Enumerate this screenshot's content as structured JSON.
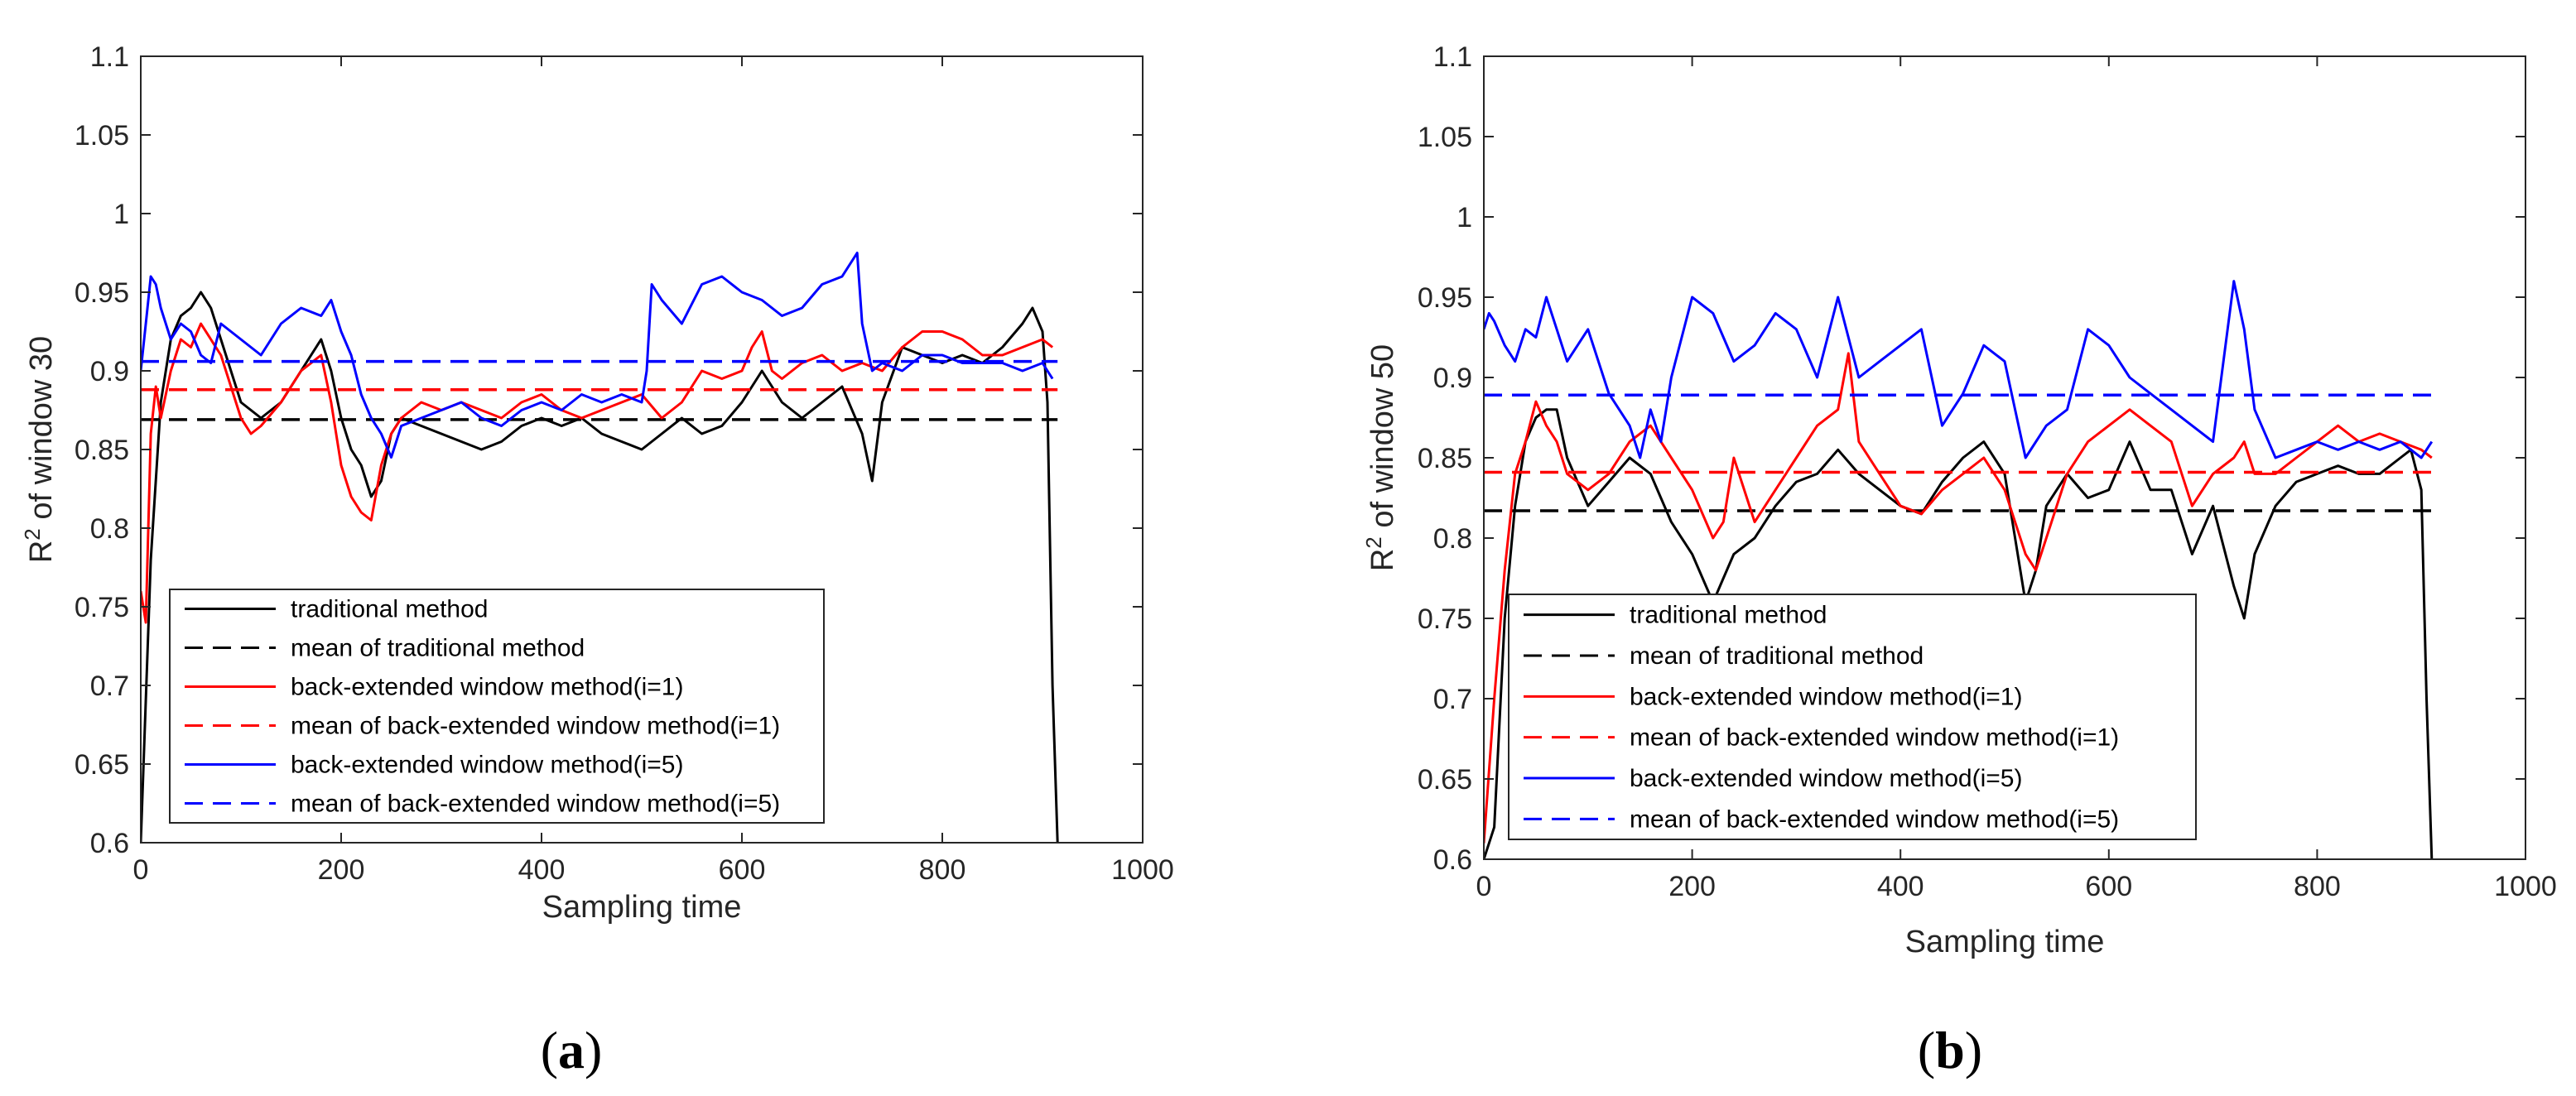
{
  "chart_data": [
    {
      "id": "a",
      "type": "line",
      "panel_label_open": "(",
      "panel_label_letter": "a",
      "panel_label_close": ")",
      "xlabel": "Sampling time",
      "ylabel_prefix": "R",
      "ylabel_sup": "2",
      "ylabel_suffix": " of window 30",
      "xlim": [
        0,
        1000
      ],
      "ylim": [
        0.6,
        1.1
      ],
      "xticks": [
        "0",
        "200",
        "400",
        "600",
        "800",
        "1000"
      ],
      "yticks": [
        "0.6",
        "0.65",
        "0.7",
        "0.75",
        "0.8",
        "0.85",
        "0.9",
        "0.95",
        "1",
        "1.05",
        "1.1"
      ],
      "legend_position": "bottom-left",
      "series": [
        {
          "name": "traditional method",
          "color": "#000000",
          "dash": "solid",
          "x": [
            0,
            10,
            20,
            30,
            40,
            50,
            60,
            70,
            80,
            90,
            100,
            120,
            140,
            160,
            180,
            190,
            200,
            210,
            220,
            230,
            240,
            250,
            260,
            280,
            300,
            320,
            340,
            360,
            380,
            400,
            420,
            440,
            460,
            480,
            500,
            520,
            540,
            560,
            580,
            600,
            620,
            640,
            660,
            680,
            700,
            720,
            730,
            740,
            760,
            780,
            800,
            820,
            840,
            860,
            880,
            890,
            900,
            905,
            910,
            915
          ],
          "y": [
            0.6,
            0.78,
            0.88,
            0.92,
            0.935,
            0.94,
            0.95,
            0.94,
            0.92,
            0.9,
            0.88,
            0.87,
            0.88,
            0.9,
            0.92,
            0.9,
            0.87,
            0.85,
            0.84,
            0.82,
            0.83,
            0.86,
            0.87,
            0.865,
            0.86,
            0.855,
            0.85,
            0.855,
            0.865,
            0.87,
            0.865,
            0.87,
            0.86,
            0.855,
            0.85,
            0.86,
            0.87,
            0.86,
            0.865,
            0.88,
            0.9,
            0.88,
            0.87,
            0.88,
            0.89,
            0.86,
            0.83,
            0.88,
            0.915,
            0.91,
            0.905,
            0.91,
            0.905,
            0.915,
            0.93,
            0.94,
            0.925,
            0.88,
            0.7,
            0.6
          ]
        },
        {
          "name": "mean of traditional method",
          "color": "#000000",
          "dash": "dashed",
          "x": [
            0,
            915
          ],
          "y": [
            0.869,
            0.869
          ]
        },
        {
          "name": "back-extended window method(i=1)",
          "color": "#ff0000",
          "dash": "solid",
          "x": [
            0,
            5,
            10,
            15,
            20,
            30,
            40,
            50,
            60,
            70,
            80,
            90,
            100,
            110,
            120,
            140,
            160,
            180,
            190,
            200,
            210,
            220,
            230,
            240,
            250,
            260,
            280,
            300,
            320,
            340,
            360,
            380,
            400,
            420,
            440,
            460,
            480,
            500,
            520,
            540,
            560,
            580,
            600,
            610,
            620,
            630,
            640,
            660,
            680,
            700,
            720,
            740,
            760,
            780,
            800,
            820,
            840,
            860,
            880,
            900,
            910
          ],
          "y": [
            0.76,
            0.74,
            0.86,
            0.89,
            0.87,
            0.9,
            0.92,
            0.915,
            0.93,
            0.92,
            0.91,
            0.89,
            0.87,
            0.86,
            0.865,
            0.88,
            0.9,
            0.91,
            0.88,
            0.84,
            0.82,
            0.81,
            0.805,
            0.84,
            0.86,
            0.87,
            0.88,
            0.875,
            0.88,
            0.875,
            0.87,
            0.88,
            0.885,
            0.875,
            0.87,
            0.875,
            0.88,
            0.885,
            0.87,
            0.88,
            0.9,
            0.895,
            0.9,
            0.915,
            0.925,
            0.9,
            0.895,
            0.905,
            0.91,
            0.9,
            0.905,
            0.9,
            0.915,
            0.925,
            0.925,
            0.92,
            0.91,
            0.91,
            0.915,
            0.92,
            0.915
          ]
        },
        {
          "name": "mean of back-extended window method(i=1)",
          "color": "#ff0000",
          "dash": "dashed",
          "x": [
            0,
            915
          ],
          "y": [
            0.888,
            0.888
          ]
        },
        {
          "name": "back-extended window method(i=5)",
          "color": "#0000ff",
          "dash": "solid",
          "x": [
            0,
            5,
            10,
            15,
            20,
            30,
            40,
            50,
            60,
            70,
            80,
            100,
            120,
            140,
            160,
            180,
            190,
            200,
            210,
            220,
            230,
            240,
            250,
            260,
            280,
            300,
            320,
            340,
            360,
            380,
            400,
            420,
            440,
            460,
            480,
            500,
            505,
            510,
            520,
            540,
            560,
            580,
            600,
            620,
            640,
            660,
            680,
            700,
            715,
            720,
            730,
            740,
            760,
            780,
            800,
            820,
            840,
            860,
            880,
            900,
            905,
            910
          ],
          "y": [
            0.9,
            0.93,
            0.96,
            0.955,
            0.94,
            0.92,
            0.93,
            0.925,
            0.91,
            0.905,
            0.93,
            0.92,
            0.91,
            0.93,
            0.94,
            0.935,
            0.945,
            0.925,
            0.91,
            0.885,
            0.87,
            0.86,
            0.845,
            0.865,
            0.87,
            0.875,
            0.88,
            0.87,
            0.865,
            0.875,
            0.88,
            0.875,
            0.885,
            0.88,
            0.885,
            0.88,
            0.9,
            0.955,
            0.945,
            0.93,
            0.955,
            0.96,
            0.95,
            0.945,
            0.935,
            0.94,
            0.955,
            0.96,
            0.975,
            0.93,
            0.9,
            0.905,
            0.9,
            0.91,
            0.91,
            0.905,
            0.905,
            0.905,
            0.9,
            0.905,
            0.9,
            0.895
          ]
        },
        {
          "name": "mean of back-extended window method(i=5)",
          "color": "#0000ff",
          "dash": "dashed",
          "x": [
            0,
            915
          ],
          "y": [
            0.906,
            0.906
          ]
        }
      ]
    },
    {
      "id": "b",
      "type": "line",
      "panel_label_open": "(",
      "panel_label_letter": "b",
      "panel_label_close": ")",
      "xlabel": "Sampling time",
      "ylabel_prefix": "R",
      "ylabel_sup": "2",
      "ylabel_suffix": " of window 50",
      "xlim": [
        0,
        1000
      ],
      "ylim": [
        0.6,
        1.1
      ],
      "xticks": [
        "0",
        "200",
        "400",
        "600",
        "800",
        "1000"
      ],
      "yticks": [
        "0.6",
        "0.65",
        "0.7",
        "0.75",
        "0.8",
        "0.85",
        "0.9",
        "0.95",
        "1",
        "1.05",
        "1.1"
      ],
      "legend_position": "bottom-left",
      "series": [
        {
          "name": "traditional method",
          "color": "#000000",
          "dash": "solid",
          "x": [
            0,
            10,
            20,
            30,
            40,
            50,
            60,
            70,
            80,
            100,
            120,
            140,
            160,
            180,
            200,
            220,
            230,
            240,
            260,
            280,
            300,
            320,
            340,
            360,
            380,
            400,
            420,
            440,
            460,
            480,
            500,
            520,
            530,
            540,
            560,
            580,
            600,
            620,
            640,
            660,
            680,
            700,
            720,
            730,
            740,
            760,
            780,
            800,
            820,
            840,
            860,
            880,
            890,
            900,
            905,
            910
          ],
          "y": [
            0.6,
            0.62,
            0.75,
            0.82,
            0.86,
            0.875,
            0.88,
            0.88,
            0.85,
            0.82,
            0.835,
            0.85,
            0.84,
            0.81,
            0.79,
            0.76,
            0.775,
            0.79,
            0.8,
            0.82,
            0.835,
            0.84,
            0.855,
            0.84,
            0.83,
            0.82,
            0.815,
            0.835,
            0.85,
            0.86,
            0.84,
            0.76,
            0.78,
            0.82,
            0.84,
            0.825,
            0.83,
            0.86,
            0.83,
            0.83,
            0.79,
            0.82,
            0.77,
            0.75,
            0.79,
            0.82,
            0.835,
            0.84,
            0.845,
            0.84,
            0.84,
            0.85,
            0.855,
            0.83,
            0.7,
            0.6
          ]
        },
        {
          "name": "mean of traditional method",
          "color": "#000000",
          "dash": "dashed",
          "x": [
            0,
            915
          ],
          "y": [
            0.817,
            0.817
          ]
        },
        {
          "name": "back-extended window method(i=1)",
          "color": "#ff0000",
          "dash": "solid",
          "x": [
            0,
            10,
            20,
            30,
            40,
            50,
            60,
            70,
            80,
            100,
            120,
            140,
            160,
            180,
            200,
            220,
            230,
            240,
            260,
            280,
            300,
            320,
            340,
            350,
            360,
            380,
            400,
            420,
            440,
            460,
            480,
            500,
            520,
            530,
            540,
            560,
            580,
            600,
            620,
            640,
            660,
            680,
            700,
            720,
            730,
            740,
            760,
            780,
            800,
            820,
            840,
            860,
            880,
            900,
            910
          ],
          "y": [
            0.61,
            0.7,
            0.78,
            0.84,
            0.86,
            0.885,
            0.87,
            0.86,
            0.84,
            0.83,
            0.84,
            0.86,
            0.87,
            0.85,
            0.83,
            0.8,
            0.81,
            0.85,
            0.81,
            0.83,
            0.85,
            0.87,
            0.88,
            0.915,
            0.86,
            0.84,
            0.82,
            0.815,
            0.83,
            0.84,
            0.85,
            0.83,
            0.79,
            0.78,
            0.8,
            0.84,
            0.86,
            0.87,
            0.88,
            0.87,
            0.86,
            0.82,
            0.84,
            0.85,
            0.86,
            0.84,
            0.84,
            0.85,
            0.86,
            0.87,
            0.86,
            0.865,
            0.86,
            0.855,
            0.85
          ]
        },
        {
          "name": "mean of back-extended window method(i=1)",
          "color": "#ff0000",
          "dash": "dashed",
          "x": [
            0,
            915
          ],
          "y": [
            0.841,
            0.841
          ]
        },
        {
          "name": "back-extended window method(i=5)",
          "color": "#0000ff",
          "dash": "solid",
          "x": [
            0,
            5,
            10,
            20,
            30,
            40,
            50,
            60,
            70,
            80,
            100,
            120,
            140,
            150,
            160,
            170,
            180,
            200,
            220,
            240,
            260,
            280,
            300,
            320,
            340,
            360,
            380,
            400,
            420,
            440,
            460,
            480,
            500,
            520,
            540,
            560,
            580,
            600,
            620,
            640,
            660,
            680,
            700,
            720,
            730,
            740,
            760,
            780,
            800,
            820,
            840,
            860,
            880,
            900,
            910
          ],
          "y": [
            0.93,
            0.94,
            0.935,
            0.92,
            0.91,
            0.93,
            0.925,
            0.95,
            0.93,
            0.91,
            0.93,
            0.89,
            0.87,
            0.85,
            0.88,
            0.86,
            0.9,
            0.95,
            0.94,
            0.91,
            0.92,
            0.94,
            0.93,
            0.9,
            0.95,
            0.9,
            0.91,
            0.92,
            0.93,
            0.87,
            0.89,
            0.92,
            0.91,
            0.85,
            0.87,
            0.88,
            0.93,
            0.92,
            0.9,
            0.89,
            0.88,
            0.87,
            0.86,
            0.96,
            0.93,
            0.88,
            0.85,
            0.855,
            0.86,
            0.855,
            0.86,
            0.855,
            0.86,
            0.85,
            0.86
          ]
        },
        {
          "name": "mean of back-extended window method(i=5)",
          "color": "#0000ff",
          "dash": "dashed",
          "x": [
            0,
            915
          ],
          "y": [
            0.889,
            0.889
          ]
        }
      ]
    }
  ]
}
